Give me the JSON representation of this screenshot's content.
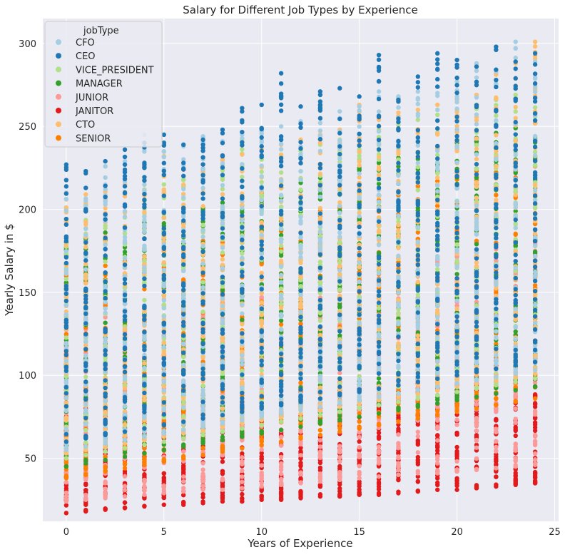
{
  "chart_data": {
    "type": "scatter",
    "title": "Salary for Different Job Types by Experience",
    "xlabel": "Years of Experience",
    "ylabel": "Yearly Salary in $",
    "xlim": [
      -1.2,
      25.2
    ],
    "ylim": [
      12,
      315
    ],
    "x_ticks": [
      0,
      5,
      10,
      15,
      20,
      25
    ],
    "y_ticks": [
      50,
      100,
      150,
      200,
      250,
      300
    ],
    "grid": true,
    "background": "#eaeaf2",
    "legend": {
      "title": "jobType",
      "placement": "top-left",
      "entries": [
        "CFO",
        "CEO",
        "VICE_PRESIDENT",
        "MANAGER",
        "JUNIOR",
        "JANITOR",
        "CTO",
        "SENIOR"
      ]
    },
    "x_values": [
      0,
      1,
      2,
      3,
      4,
      5,
      6,
      7,
      8,
      9,
      10,
      11,
      12,
      13,
      14,
      15,
      16,
      17,
      18,
      19,
      20,
      21,
      22,
      23,
      24
    ],
    "series": [
      {
        "name": "JANITOR",
        "color": "#e31a1c",
        "min": [
          17,
          18,
          19,
          20,
          21,
          22,
          22,
          23,
          24,
          24,
          25,
          25,
          26,
          27,
          27,
          28,
          28,
          29,
          30,
          31,
          31,
          32,
          33,
          34,
          35
        ],
        "max": [
          75,
          80,
          78,
          75,
          78,
          84,
          83,
          82,
          86,
          84,
          88,
          88,
          90,
          92,
          95,
          94,
          95,
          95,
          98,
          100,
          100,
          104,
          106,
          105,
          110
        ]
      },
      {
        "name": "JUNIOR",
        "color": "#fb9a99",
        "min": [
          24,
          25,
          26,
          27,
          28,
          29,
          30,
          31,
          31,
          32,
          33,
          34,
          35,
          36,
          37,
          38,
          39,
          40,
          41,
          41,
          42,
          43,
          44,
          45,
          46
        ],
        "max": [
          130,
          133,
          135,
          138,
          140,
          142,
          144,
          146,
          148,
          150,
          152,
          154,
          156,
          158,
          160,
          162,
          164,
          166,
          168,
          170,
          172,
          174,
          176,
          178,
          180
        ]
      },
      {
        "name": "SENIOR",
        "color": "#ff7f00",
        "min": [
          38,
          40,
          42,
          44,
          46,
          48,
          50,
          52,
          54,
          56,
          58,
          60,
          62,
          64,
          66,
          68,
          70,
          72,
          74,
          76,
          78,
          80,
          82,
          84,
          86
        ],
        "max": [
          160,
          163,
          166,
          169,
          172,
          175,
          178,
          181,
          184,
          187,
          190,
          193,
          196,
          199,
          202,
          205,
          208,
          211,
          214,
          217,
          220,
          223,
          226,
          229,
          232
        ]
      },
      {
        "name": "MANAGER",
        "color": "#33a02c",
        "min": [
          45,
          47,
          49,
          51,
          53,
          55,
          57,
          59,
          61,
          63,
          65,
          67,
          69,
          71,
          73,
          75,
          77,
          79,
          81,
          83,
          85,
          87,
          89,
          91,
          93
        ],
        "max": [
          180,
          183,
          186,
          189,
          192,
          195,
          198,
          201,
          204,
          207,
          210,
          213,
          216,
          219,
          222,
          225,
          228,
          231,
          234,
          237,
          240,
          243,
          246,
          249,
          252
        ]
      },
      {
        "name": "VICE_PRESIDENT",
        "color": "#b2df8a",
        "min": [
          50,
          52,
          54,
          56,
          58,
          60,
          62,
          64,
          66,
          68,
          70,
          72,
          74,
          76,
          78,
          80,
          82,
          84,
          86,
          88,
          90,
          92,
          94,
          96,
          98
        ],
        "max": [
          200,
          203,
          206,
          209,
          212,
          215,
          218,
          221,
          224,
          242,
          230,
          233,
          236,
          239,
          242,
          245,
          248,
          251,
          254,
          257,
          260,
          263,
          266,
          269,
          272
        ]
      },
      {
        "name": "CTO",
        "color": "#fdbf6f",
        "min": [
          53,
          55,
          57,
          59,
          61,
          63,
          65,
          67,
          69,
          71,
          73,
          75,
          77,
          79,
          81,
          83,
          85,
          87,
          89,
          91,
          93,
          95,
          97,
          99,
          101
        ],
        "max": [
          206,
          209,
          212,
          215,
          218,
          232,
          224,
          227,
          230,
          233,
          236,
          239,
          242,
          245,
          248,
          263,
          254,
          267,
          260,
          263,
          266,
          269,
          282,
          288,
          301
        ]
      },
      {
        "name": "CFO",
        "color": "#a6cee3",
        "min": [
          55,
          57,
          59,
          61,
          63,
          65,
          67,
          69,
          71,
          73,
          75,
          77,
          79,
          81,
          83,
          85,
          87,
          89,
          91,
          93,
          95,
          97,
          99,
          101,
          103
        ],
        "max": [
          210,
          213,
          226,
          229,
          245,
          235,
          238,
          244,
          241,
          245,
          247,
          250,
          253,
          260,
          259,
          262,
          271,
          268,
          271,
          274,
          277,
          288,
          283,
          301,
          289
        ]
      },
      {
        "name": "CEO",
        "color": "#1f78b4",
        "min": [
          60,
          62,
          64,
          66,
          68,
          70,
          72,
          74,
          76,
          78,
          80,
          82,
          84,
          86,
          88,
          90,
          92,
          94,
          96,
          98,
          100,
          102,
          104,
          106,
          108
        ],
        "max": [
          227,
          223,
          229,
          236,
          240,
          245,
          239,
          242,
          248,
          261,
          263,
          282,
          262,
          271,
          273,
          268,
          293,
          266,
          280,
          294,
          290,
          286,
          298,
          289,
          294
        ]
      }
    ]
  }
}
